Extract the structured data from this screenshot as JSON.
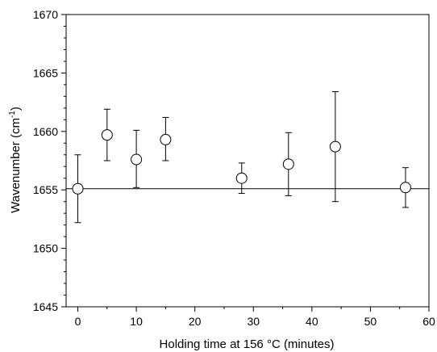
{
  "chart_data": {
    "type": "scatter",
    "title": "",
    "xlabel": "Holding time at 156 °C (minutes)",
    "ylabel_main": "Wavenumber (cm",
    "ylabel_sup": "-1",
    "ylabel_close": ")",
    "xlim": [
      -2,
      60
    ],
    "ylim": [
      1645,
      1670
    ],
    "xticks": [
      0,
      10,
      20,
      30,
      40,
      50,
      60
    ],
    "yticks": [
      1645,
      1650,
      1655,
      1660,
      1665,
      1670
    ],
    "grid": false,
    "legend": "none",
    "series": [
      {
        "points": [
          {
            "x": 0,
            "y": 1655.1,
            "err_low": 1652.2,
            "err_high": 1658.0
          },
          {
            "x": 5,
            "y": 1659.7,
            "err_low": 1657.5,
            "err_high": 1661.9
          },
          {
            "x": 10,
            "y": 1657.6,
            "err_low": 1655.2,
            "err_high": 1660.1
          },
          {
            "x": 15,
            "y": 1659.3,
            "err_low": 1657.5,
            "err_high": 1661.2
          },
          {
            "x": 28,
            "y": 1656.0,
            "err_low": 1654.7,
            "err_high": 1657.3
          },
          {
            "x": 36,
            "y": 1657.2,
            "err_low": 1654.5,
            "err_high": 1659.9
          },
          {
            "x": 44,
            "y": 1658.7,
            "err_low": 1654.0,
            "err_high": 1663.4
          },
          {
            "x": 56,
            "y": 1655.2,
            "err_low": 1653.5,
            "err_high": 1656.9
          }
        ]
      }
    ],
    "reference_line": {
      "y": 1655.1
    },
    "colors": {
      "axis": "#000000",
      "marker_fill": "#ffffff",
      "marker_stroke": "#000000"
    }
  }
}
